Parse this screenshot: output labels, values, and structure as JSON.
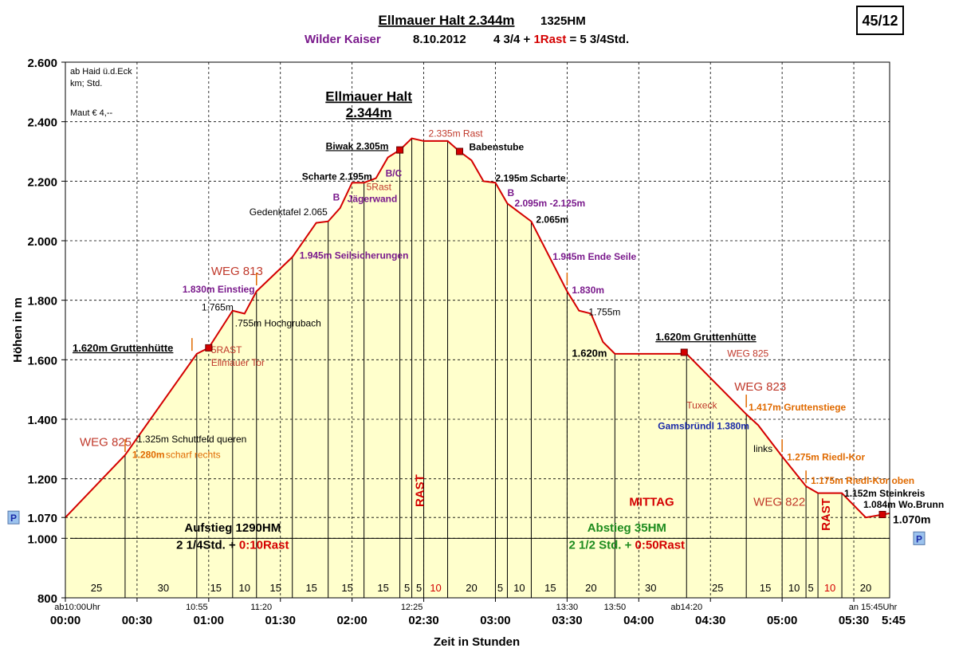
{
  "header": {
    "title": "Ellmauer Halt  2.344m",
    "title_hm": "1325HM",
    "region": "Wilder Kaiser",
    "date": "8.10.2012",
    "duration_a": "4 3/4 + ",
    "duration_b": "1Rast",
    "duration_c": " = 5 3/4Std.",
    "badge": "45/12"
  },
  "colors": {
    "line": "#d40000",
    "fill": "#ffffcc",
    "purple": "#7a1a8c",
    "orange": "#e06a00",
    "green": "#1e8c1e",
    "darkred": "#c0392b",
    "blue": "#1a2aa8",
    "marker_p": "#9cc3ee"
  },
  "chart_data": {
    "type": "area",
    "xlabel": "Zeit in Stunden",
    "ylabel": "Höhen in m",
    "xlim": [
      0,
      345
    ],
    "ylim": [
      800,
      2600
    ],
    "x_ticks": [
      0,
      30,
      60,
      90,
      120,
      150,
      180,
      210,
      240,
      270,
      300,
      330
    ],
    "x_tick_labels": [
      "00:00",
      "00:30",
      "01:00",
      "01:30",
      "02:00",
      "02:30",
      "03:00",
      "03:30",
      "04:00",
      "04:30",
      "05:00",
      "05:30"
    ],
    "x_end_label": "5:45",
    "y_ticks": [
      800,
      1000,
      1070,
      1200,
      1400,
      1600,
      1800,
      2000,
      2200,
      2400,
      2600
    ],
    "y_tick_labels": [
      "800",
      "1.000",
      "1.070",
      "1.200",
      "1.400",
      "1.600",
      "1.800",
      "2.000",
      "2.200",
      "2.400",
      "2.600"
    ],
    "grid": true,
    "profile": [
      {
        "x": 0,
        "y": 1070
      },
      {
        "x": 25,
        "y": 1280
      },
      {
        "x": 55,
        "y": 1620
      },
      {
        "x": 60,
        "y": 1640
      },
      {
        "x": 70,
        "y": 1765
      },
      {
        "x": 75,
        "y": 1755
      },
      {
        "x": 80,
        "y": 1830
      },
      {
        "x": 95,
        "y": 1945
      },
      {
        "x": 105,
        "y": 2060
      },
      {
        "x": 110,
        "y": 2065
      },
      {
        "x": 115,
        "y": 2110
      },
      {
        "x": 120,
        "y": 2195
      },
      {
        "x": 125,
        "y": 2195
      },
      {
        "x": 130,
        "y": 2210
      },
      {
        "x": 135,
        "y": 2280
      },
      {
        "x": 140,
        "y": 2305
      },
      {
        "x": 145,
        "y": 2344
      },
      {
        "x": 150,
        "y": 2335
      },
      {
        "x": 160,
        "y": 2335
      },
      {
        "x": 165,
        "y": 2300
      },
      {
        "x": 170,
        "y": 2270
      },
      {
        "x": 175,
        "y": 2200
      },
      {
        "x": 180,
        "y": 2195
      },
      {
        "x": 185,
        "y": 2125
      },
      {
        "x": 190,
        "y": 2095
      },
      {
        "x": 195,
        "y": 2065
      },
      {
        "x": 210,
        "y": 1830
      },
      {
        "x": 215,
        "y": 1765
      },
      {
        "x": 220,
        "y": 1755
      },
      {
        "x": 225,
        "y": 1660
      },
      {
        "x": 230,
        "y": 1620
      },
      {
        "x": 260,
        "y": 1620
      },
      {
        "x": 285,
        "y": 1417
      },
      {
        "x": 290,
        "y": 1380
      },
      {
        "x": 300,
        "y": 1275
      },
      {
        "x": 310,
        "y": 1175
      },
      {
        "x": 315,
        "y": 1152
      },
      {
        "x": 325,
        "y": 1152
      },
      {
        "x": 335,
        "y": 1070
      },
      {
        "x": 345,
        "y": 1084
      }
    ],
    "segment_dividers": [
      25,
      55,
      70,
      80,
      95,
      110,
      125,
      140,
      145,
      150,
      160,
      180,
      185,
      195,
      210,
      230,
      260,
      285,
      300,
      310,
      315,
      325,
      345
    ],
    "segment_minutes": [
      {
        "x": 13,
        "label": "25"
      },
      {
        "x": 41,
        "label": "30"
      },
      {
        "x": 63,
        "label": "15"
      },
      {
        "x": 75,
        "label": "10"
      },
      {
        "x": 88,
        "label": "15"
      },
      {
        "x": 103,
        "label": "15"
      },
      {
        "x": 118,
        "label": "15"
      },
      {
        "x": 133,
        "label": "15"
      },
      {
        "x": 143,
        "label": "5"
      },
      {
        "x": 148,
        "label": "5"
      },
      {
        "x": 155,
        "label": "10"
      },
      {
        "x": 170,
        "label": "20"
      },
      {
        "x": 182,
        "label": "5"
      },
      {
        "x": 190,
        "label": "10"
      },
      {
        "x": 203,
        "label": "15"
      },
      {
        "x": 220,
        "label": "20"
      },
      {
        "x": 245,
        "label": "30"
      },
      {
        "x": 273,
        "label": "25"
      },
      {
        "x": 293,
        "label": "15"
      },
      {
        "x": 305,
        "label": "10"
      },
      {
        "x": 312,
        "label": "5"
      },
      {
        "x": 320,
        "label": "10"
      },
      {
        "x": 335,
        "label": "20"
      }
    ],
    "clock_labels": [
      {
        "x": 5,
        "label": "ab10:00Uhr"
      },
      {
        "x": 55,
        "label": "10:55"
      },
      {
        "x": 82,
        "label": "11:20"
      },
      {
        "x": 145,
        "label": "12:25"
      },
      {
        "x": 210,
        "label": "13:30"
      },
      {
        "x": 230,
        "label": "13:50"
      },
      {
        "x": 260,
        "label": "ab14:20"
      },
      {
        "x": 338,
        "label": "an 15:45Uhr"
      }
    ],
    "annotations": [
      {
        "x": 2,
        "y": 2560,
        "text": "ab Haid ü.d.Eck",
        "color": "#000000",
        "size": 11,
        "bold": false
      },
      {
        "x": 2,
        "y": 2520,
        "text": "km; Std.",
        "color": "#000000",
        "size": 11,
        "bold": false
      },
      {
        "x": 2,
        "y": 2420,
        "text": "Maut € 4,--",
        "color": "#000000",
        "size": 11,
        "bold": false
      },
      {
        "x": 3,
        "y": 1628,
        "text": "1.620m Gruttenhütte",
        "color": "#000000",
        "size": 13,
        "bold": true,
        "underline": true
      },
      {
        "x": 6,
        "y": 1310,
        "text": "WEG 825",
        "color": "#c0392b",
        "size": 15,
        "bold": false
      },
      {
        "x": 30,
        "y": 1322,
        "text": "1.325m Schuttfeld queren",
        "color": "#000000",
        "size": 12,
        "bold": false
      },
      {
        "x": 28,
        "y": 1270,
        "text": "1.280m",
        "color": "#e06a00",
        "size": 12,
        "bold": true
      },
      {
        "x": 42,
        "y": 1270,
        "text": "scharf rechts",
        "color": "#e06a00",
        "size": 12,
        "bold": false
      },
      {
        "x": 61,
        "y": 1622,
        "text": "5RAST",
        "color": "#c0392b",
        "size": 12,
        "bold": false
      },
      {
        "x": 61,
        "y": 1580,
        "text": "Ellmauer Tor",
        "color": "#c0392b",
        "size": 12,
        "bold": false
      },
      {
        "x": 61,
        "y": 1885,
        "text": "WEG 813",
        "color": "#c0392b",
        "size": 15,
        "bold": false
      },
      {
        "x": 49,
        "y": 1826,
        "text": "1.830m Einstieg",
        "color": "#7a1a8c",
        "size": 12,
        "bold": true
      },
      {
        "x": 57,
        "y": 1766,
        "text": "1.765m",
        "color": "#000000",
        "size": 12,
        "bold": false
      },
      {
        "x": 71,
        "y": 1712,
        "text": ".755m Hochgrubach",
        "color": "#000000",
        "size": 12,
        "bold": false
      },
      {
        "x": 98,
        "y": 1940,
        "text": "1.945m Seilsicherungen",
        "color": "#7a1a8c",
        "size": 12,
        "bold": true
      },
      {
        "x": 77,
        "y": 2086,
        "text": "Gedenktafel 2.065",
        "color": "#000000",
        "size": 12,
        "bold": false
      },
      {
        "x": 112,
        "y": 2135,
        "text": "B",
        "color": "#7a1a8c",
        "size": 12,
        "bold": true
      },
      {
        "x": 118,
        "y": 2130,
        "text": "Jägerwand",
        "color": "#7a1a8c",
        "size": 12,
        "bold": true
      },
      {
        "x": 99,
        "y": 2205,
        "text": "Scharte 2.195m",
        "color": "#000000",
        "size": 12,
        "bold": true
      },
      {
        "x": 126,
        "y": 2170,
        "text": "5Rast",
        "color": "#c0392b",
        "size": 12,
        "bold": false
      },
      {
        "x": 134,
        "y": 2215,
        "text": "B/C",
        "color": "#7a1a8c",
        "size": 12,
        "bold": true
      },
      {
        "x": 109,
        "y": 2307,
        "text": "Biwak 2.305m",
        "color": "#000000",
        "size": 12,
        "bold": true,
        "underline": true
      },
      {
        "x": 152,
        "y": 2350,
        "text": "2.335m Rast",
        "color": "#c0392b",
        "size": 12,
        "bold": false
      },
      {
        "x": 169,
        "y": 2304,
        "text": "Babenstube",
        "color": "#000000",
        "size": 12,
        "bold": true
      },
      {
        "x": 180,
        "y": 2200,
        "text": "2.195m Scharte",
        "color": "#000000",
        "size": 12,
        "bold": true
      },
      {
        "x": 185,
        "y": 2150,
        "text": "B",
        "color": "#7a1a8c",
        "size": 12,
        "bold": true
      },
      {
        "x": 188,
        "y": 2115,
        "text": "2.095m -2.125m",
        "color": "#7a1a8c",
        "size": 12,
        "bold": true
      },
      {
        "x": 197,
        "y": 2060,
        "text": "2.065m",
        "color": "#000000",
        "size": 12,
        "bold": true
      },
      {
        "x": 204,
        "y": 1936,
        "text": "1.945m Ende Seile",
        "color": "#7a1a8c",
        "size": 12,
        "bold": true
      },
      {
        "x": 212,
        "y": 1823,
        "text": "1.830m",
        "color": "#7a1a8c",
        "size": 12,
        "bold": true
      },
      {
        "x": 219,
        "y": 1750,
        "text": "1.755m",
        "color": "#000000",
        "size": 12,
        "bold": false
      },
      {
        "x": 212,
        "y": 1610,
        "text": "1.620m",
        "color": "#000000",
        "size": 13,
        "bold": true
      },
      {
        "x": 247,
        "y": 1665,
        "text": "1.620m Gruttenhütte",
        "color": "#000000",
        "size": 13,
        "bold": true,
        "underline": true
      },
      {
        "x": 277,
        "y": 1610,
        "text": "WEG 825",
        "color": "#c0392b",
        "size": 12,
        "bold": false
      },
      {
        "x": 280,
        "y": 1497,
        "text": "WEG 823",
        "color": "#c0392b",
        "size": 15,
        "bold": false
      },
      {
        "x": 260,
        "y": 1436,
        "text": "Tuxeck",
        "color": "#c0392b",
        "size": 12,
        "bold": false
      },
      {
        "x": 286,
        "y": 1430,
        "text": "1.417m Gruttenstiege",
        "color": "#e06a00",
        "size": 12,
        "bold": true
      },
      {
        "x": 248,
        "y": 1366,
        "text": "Gamsbründl 1.380m",
        "color": "#1a2aa8",
        "size": 12,
        "bold": true
      },
      {
        "x": 288,
        "y": 1290,
        "text": "links",
        "color": "#000000",
        "size": 12,
        "bold": false
      },
      {
        "x": 302,
        "y": 1262,
        "text": "1.275m Riedl-Kor",
        "color": "#e06a00",
        "size": 12,
        "bold": true
      },
      {
        "x": 312,
        "y": 1183,
        "text": "1.175m Riedl-Kor oben",
        "color": "#e06a00",
        "size": 12,
        "bold": true
      },
      {
        "x": 326,
        "y": 1140,
        "text": "1.152m Steinkreis",
        "color": "#000000",
        "size": 12,
        "bold": true
      },
      {
        "x": 334,
        "y": 1103,
        "text": "1.084m Wo.Brunn",
        "color": "#000000",
        "size": 12,
        "bold": true
      },
      {
        "x": 288,
        "y": 1110,
        "text": "WEG 822",
        "color": "#c0392b",
        "size": 15,
        "bold": false
      },
      {
        "x": 236,
        "y": 1110,
        "text": "MITTAG",
        "color": "#d40000",
        "size": 15,
        "bold": true
      }
    ],
    "peak_title_1": "Ellmauer Halt",
    "peak_title_2": "2.344m",
    "aufstieg_label": "Aufstieg 1290HM",
    "aufstieg_time_a": "2 1/4Std. + ",
    "aufstieg_time_b": "0:10Rast",
    "abstieg_label": "Abstieg 35HM",
    "abstieg_time_a": "2 1/2 Std. + ",
    "abstieg_time_b": "0:50Rast",
    "rast_label": "RAST",
    "start_elev": "1.070m",
    "parking": "P"
  }
}
